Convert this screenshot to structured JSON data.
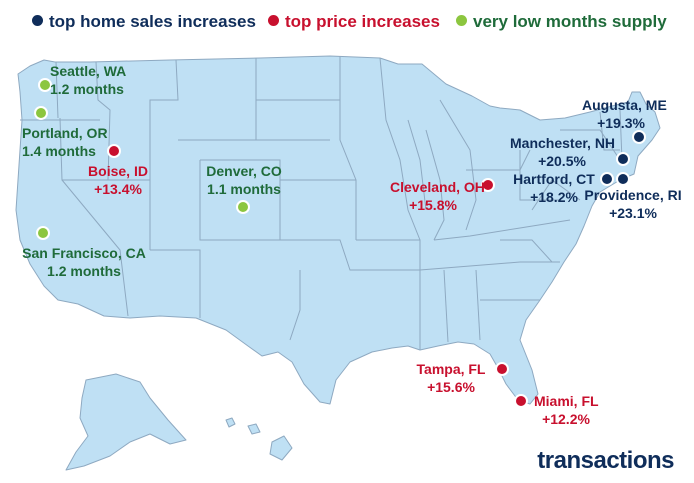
{
  "legend": {
    "sales": "top home sales increases",
    "price": "top price increases",
    "supply": "very low months supply"
  },
  "colors": {
    "sales": "#0f2d5a",
    "price": "#c8102e",
    "supply": "#8cc63f",
    "land": "#bfe0f4",
    "border": "#8ea9c1"
  },
  "cities": [
    {
      "name": "Seattle, WA",
      "value": "1.2 months",
      "category": "supply"
    },
    {
      "name": "Portland, OR",
      "value": "1.4 months",
      "category": "supply"
    },
    {
      "name": "San Francisco, CA",
      "value": "1.2 months",
      "category": "supply"
    },
    {
      "name": "Denver, CO",
      "value": "1.1 months",
      "category": "supply"
    },
    {
      "name": "Boise, ID",
      "value": "+13.4%",
      "category": "price"
    },
    {
      "name": "Cleveland, OH",
      "value": "+15.8%",
      "category": "price"
    },
    {
      "name": "Tampa, FL",
      "value": "+15.6%",
      "category": "price"
    },
    {
      "name": "Miami, FL",
      "value": "+12.2%",
      "category": "price"
    },
    {
      "name": "Augusta, ME",
      "value": "+19.3%",
      "category": "sales"
    },
    {
      "name": "Manchester, NH",
      "value": "+20.5%",
      "category": "sales"
    },
    {
      "name": "Hartford, CT",
      "value": "+18.2%",
      "category": "sales"
    },
    {
      "name": "Providence, RI",
      "value": "+23.1%",
      "category": "sales"
    }
  ],
  "brand": "transactions"
}
